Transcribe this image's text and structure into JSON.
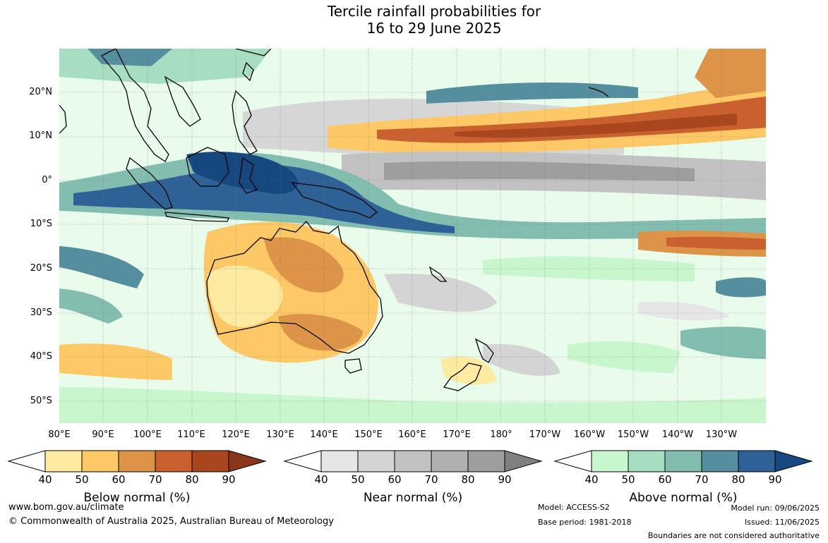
{
  "title_line1": "Tercile rainfall probabilities for",
  "title_line2": "16 to 29 June 2025",
  "lat_labels": [
    "20°N",
    "10°N",
    "0°",
    "10°S",
    "20°S",
    "30°S",
    "40°S",
    "50°S"
  ],
  "lon_labels": [
    "80°E",
    "90°E",
    "100°E",
    "110°E",
    "120°E",
    "130°E",
    "140°E",
    "150°E",
    "160°E",
    "170°E",
    "180°",
    "170°W",
    "160°W",
    "150°W",
    "140°W",
    "130°W"
  ],
  "colorbars": [
    {
      "title": "Below normal (%)",
      "ticks": [
        "40",
        "50",
        "60",
        "70",
        "80",
        "90"
      ],
      "colors": [
        "#ffffff",
        "#feeaa0",
        "#fdc865",
        "#de9448",
        "#c9602e",
        "#a9461e",
        "#8a3618"
      ]
    },
    {
      "title": "Near normal (%)",
      "ticks": [
        "40",
        "50",
        "60",
        "70",
        "80",
        "90"
      ],
      "colors": [
        "#ffffff",
        "#e6e6e6",
        "#d4d4d4",
        "#c2c2c2",
        "#b0b0b0",
        "#9e9e9e",
        "#808080"
      ]
    },
    {
      "title": "Above normal (%)",
      "ticks": [
        "40",
        "50",
        "60",
        "70",
        "80",
        "90"
      ],
      "colors": [
        "#ffffff",
        "#c8f7cd",
        "#a7ddc0",
        "#83bdb0",
        "#548e9f",
        "#2e6196",
        "#17477f"
      ]
    }
  ],
  "footer": {
    "website": "www.bom.gov.au/climate",
    "copyright": "© Commonwealth of Australia 2025, Australian Bureau of Meteorology",
    "model": "Model: ACCESS-S2",
    "base_period": "Base period: 1981-2018",
    "model_run": "Model run: 09/06/2025",
    "issued": "Issued: 11/06/2025",
    "disclaimer": "Boundaries are not considered authoritative"
  }
}
